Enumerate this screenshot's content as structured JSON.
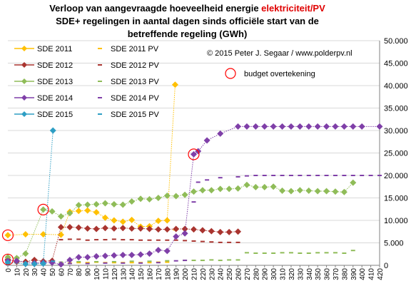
{
  "title": {
    "line1_prefix": "Verloop van aangevraagde hoeveelheid energie ",
    "line1_highlight": "elektriciteit/PV",
    "line2": "SDE+ regelingen in aantal dagen sinds officiële start van de",
    "line3": "betreffende regeling (GWh)"
  },
  "copyright": "© 2015 Peter J. Segaar / www.polderpv.nl",
  "budget_label": "budget overtekening",
  "colors": {
    "sde2011": "#ffc000",
    "sde2012": "#a9342f",
    "sde2013": "#8fbc58",
    "sde2014": "#7f3fa8",
    "sde2015": "#2e9ec4",
    "marker_circle": "#ff0000",
    "grid": "#d9d9d9"
  },
  "chart_data": {
    "type": "line",
    "xlabel": "",
    "ylabel": "",
    "xlim": [
      0,
      420
    ],
    "ylim": [
      0,
      50000
    ],
    "x_ticks": [
      0,
      10,
      20,
      30,
      40,
      50,
      60,
      70,
      80,
      90,
      100,
      110,
      120,
      130,
      140,
      150,
      160,
      170,
      180,
      190,
      200,
      210,
      220,
      230,
      240,
      250,
      260,
      270,
      280,
      290,
      300,
      310,
      320,
      330,
      340,
      350,
      360,
      370,
      380,
      390,
      400,
      410,
      420
    ],
    "y_ticks": [
      "0",
      "5.000",
      "10.000",
      "15.000",
      "20.000",
      "25.000",
      "30.000",
      "35.000",
      "40.000",
      "45.000",
      "50.000"
    ],
    "y_axis_side": "right",
    "grid": true,
    "legend_position": "top-left",
    "series": [
      {
        "name": "SDE 2011",
        "style": "marker-line",
        "color": "#ffc000",
        "points": [
          [
            0,
            6700
          ],
          [
            20,
            6900
          ],
          [
            40,
            6900
          ],
          [
            60,
            6800
          ],
          [
            70,
            11900
          ],
          [
            80,
            12100
          ],
          [
            90,
            12200
          ],
          [
            100,
            11800
          ],
          [
            110,
            10600
          ],
          [
            120,
            10000
          ],
          [
            130,
            9700
          ],
          [
            140,
            10100
          ],
          [
            150,
            8600
          ],
          [
            160,
            8700
          ],
          [
            170,
            9900
          ],
          [
            180,
            10000
          ],
          [
            189,
            40200
          ]
        ]
      },
      {
        "name": "SDE 2011 PV",
        "style": "dash",
        "color": "#ffc000",
        "points": [
          [
            0,
            200
          ],
          [
            20,
            300
          ],
          [
            40,
            200
          ],
          [
            60,
            300
          ],
          [
            70,
            500
          ],
          [
            80,
            600
          ],
          [
            90,
            600
          ],
          [
            100,
            700
          ],
          [
            110,
            600
          ],
          [
            120,
            600
          ],
          [
            130,
            600
          ],
          [
            140,
            600
          ],
          [
            150,
            600
          ],
          [
            160,
            600
          ],
          [
            170,
            700
          ],
          [
            180,
            700
          ],
          [
            189,
            7900
          ]
        ]
      },
      {
        "name": "SDE 2012",
        "style": "marker-line",
        "color": "#a9342f",
        "points": [
          [
            0,
            1300
          ],
          [
            10,
            800
          ],
          [
            20,
            800
          ],
          [
            30,
            1200
          ],
          [
            40,
            900
          ],
          [
            50,
            1000
          ],
          [
            60,
            8500
          ],
          [
            70,
            8500
          ],
          [
            80,
            8400
          ],
          [
            90,
            8200
          ],
          [
            100,
            8100
          ],
          [
            110,
            8300
          ],
          [
            120,
            8200
          ],
          [
            130,
            8300
          ],
          [
            140,
            8200
          ],
          [
            150,
            8200
          ],
          [
            160,
            8100
          ],
          [
            170,
            8000
          ],
          [
            180,
            8000
          ],
          [
            190,
            8100
          ],
          [
            200,
            8100
          ],
          [
            210,
            8000
          ],
          [
            220,
            7800
          ],
          [
            230,
            7600
          ],
          [
            240,
            7400
          ],
          [
            250,
            7400
          ],
          [
            260,
            7500
          ]
        ]
      },
      {
        "name": "SDE 2012 PV",
        "style": "dash",
        "color": "#a9342f",
        "points": [
          [
            0,
            700
          ],
          [
            30,
            800
          ],
          [
            60,
            5700
          ],
          [
            70,
            5800
          ],
          [
            80,
            5800
          ],
          [
            90,
            5600
          ],
          [
            100,
            5700
          ],
          [
            110,
            5700
          ],
          [
            120,
            5800
          ],
          [
            130,
            5700
          ],
          [
            140,
            5700
          ],
          [
            150,
            5600
          ],
          [
            160,
            5600
          ],
          [
            170,
            5600
          ],
          [
            180,
            5600
          ],
          [
            190,
            5600
          ],
          [
            200,
            5500
          ],
          [
            210,
            5400
          ],
          [
            220,
            5300
          ],
          [
            230,
            5200
          ],
          [
            240,
            5100
          ],
          [
            250,
            5100
          ],
          [
            260,
            5100
          ]
        ]
      },
      {
        "name": "SDE 2013",
        "style": "marker-line",
        "color": "#8fbc58",
        "points": [
          [
            0,
            1800
          ],
          [
            10,
            1600
          ],
          [
            20,
            2600
          ],
          [
            40,
            12400
          ],
          [
            50,
            12000
          ],
          [
            60,
            10900
          ],
          [
            70,
            11600
          ],
          [
            80,
            13400
          ],
          [
            90,
            13500
          ],
          [
            100,
            13600
          ],
          [
            110,
            13800
          ],
          [
            120,
            13600
          ],
          [
            130,
            13500
          ],
          [
            140,
            14200
          ],
          [
            150,
            14800
          ],
          [
            160,
            14700
          ],
          [
            170,
            15000
          ],
          [
            180,
            15500
          ],
          [
            190,
            15400
          ],
          [
            200,
            15700
          ],
          [
            210,
            16400
          ],
          [
            220,
            16700
          ],
          [
            230,
            16700
          ],
          [
            240,
            17000
          ],
          [
            250,
            17000
          ],
          [
            260,
            17100
          ],
          [
            270,
            17900
          ],
          [
            280,
            17400
          ],
          [
            290,
            17400
          ],
          [
            300,
            17500
          ],
          [
            310,
            16600
          ],
          [
            320,
            16500
          ],
          [
            330,
            16700
          ],
          [
            340,
            16600
          ],
          [
            350,
            16500
          ],
          [
            360,
            16500
          ],
          [
            370,
            16400
          ],
          [
            380,
            16300
          ],
          [
            390,
            18400
          ]
        ]
      },
      {
        "name": "SDE 2013 PV",
        "style": "dash",
        "color": "#8fbc58",
        "points": [
          [
            0,
            200
          ],
          [
            20,
            400
          ],
          [
            40,
            600
          ],
          [
            60,
            700
          ],
          [
            80,
            800
          ],
          [
            100,
            800
          ],
          [
            120,
            800
          ],
          [
            140,
            900
          ],
          [
            160,
            900
          ],
          [
            180,
            1000
          ],
          [
            200,
            1100
          ],
          [
            210,
            1100
          ],
          [
            220,
            1100
          ],
          [
            230,
            1200
          ],
          [
            240,
            1100
          ],
          [
            250,
            1200
          ],
          [
            260,
            1200
          ],
          [
            270,
            2800
          ],
          [
            280,
            2700
          ],
          [
            290,
            2700
          ],
          [
            300,
            2700
          ],
          [
            310,
            2800
          ],
          [
            320,
            2800
          ],
          [
            330,
            2700
          ],
          [
            340,
            2700
          ],
          [
            350,
            2800
          ],
          [
            360,
            2800
          ],
          [
            370,
            2800
          ],
          [
            380,
            2700
          ],
          [
            390,
            3300
          ]
        ]
      },
      {
        "name": "SDE 2014",
        "style": "marker-line",
        "color": "#7f3fa8",
        "points": [
          [
            0,
            1000
          ],
          [
            10,
            1000
          ],
          [
            30,
            500
          ],
          [
            40,
            600
          ],
          [
            50,
            600
          ],
          [
            60,
            200
          ],
          [
            70,
            1200
          ],
          [
            80,
            1800
          ],
          [
            90,
            1800
          ],
          [
            100,
            2000
          ],
          [
            110,
            2100
          ],
          [
            120,
            2200
          ],
          [
            130,
            2300
          ],
          [
            140,
            2300
          ],
          [
            150,
            2400
          ],
          [
            160,
            2600
          ],
          [
            170,
            3400
          ],
          [
            180,
            3200
          ],
          [
            190,
            6400
          ],
          [
            200,
            7100
          ],
          [
            210,
            24700
          ],
          [
            215,
            25400
          ],
          [
            225,
            27800
          ],
          [
            240,
            29300
          ],
          [
            260,
            30900
          ],
          [
            270,
            30900
          ],
          [
            280,
            30900
          ],
          [
            290,
            30900
          ],
          [
            300,
            30900
          ],
          [
            310,
            30900
          ],
          [
            320,
            30900
          ],
          [
            330,
            30900
          ],
          [
            340,
            30900
          ],
          [
            350,
            30900
          ],
          [
            360,
            30900
          ],
          [
            370,
            30900
          ],
          [
            380,
            30900
          ],
          [
            390,
            30900
          ],
          [
            400,
            30900
          ],
          [
            420,
            30900
          ]
        ]
      },
      {
        "name": "SDE 2014 PV",
        "style": "dash",
        "color": "#7f3fa8",
        "points": [
          [
            0,
            200
          ],
          [
            30,
            200
          ],
          [
            60,
            200
          ],
          [
            70,
            400
          ],
          [
            90,
            400
          ],
          [
            110,
            500
          ],
          [
            130,
            500
          ],
          [
            150,
            500
          ],
          [
            170,
            600
          ],
          [
            190,
            1000
          ],
          [
            200,
            1100
          ],
          [
            210,
            14100
          ],
          [
            215,
            18500
          ],
          [
            225,
            19000
          ],
          [
            240,
            19500
          ],
          [
            260,
            19700
          ],
          [
            270,
            19900
          ],
          [
            280,
            20000
          ],
          [
            290,
            20000
          ],
          [
            300,
            20000
          ],
          [
            310,
            20000
          ],
          [
            320,
            20000
          ],
          [
            330,
            20000
          ],
          [
            340,
            20000
          ],
          [
            350,
            20000
          ],
          [
            360,
            20000
          ],
          [
            370,
            20000
          ],
          [
            380,
            20000
          ],
          [
            390,
            20000
          ],
          [
            400,
            20000
          ],
          [
            410,
            20000
          ],
          [
            420,
            20000
          ]
        ]
      },
      {
        "name": "SDE 2015",
        "style": "marker-line",
        "color": "#2e9ec4",
        "points": [
          [
            0,
            600
          ],
          [
            20,
            300
          ],
          [
            30,
            300
          ],
          [
            40,
            400
          ],
          [
            51,
            30000
          ]
        ]
      },
      {
        "name": "SDE 2015 PV",
        "style": "dash",
        "color": "#2e9ec4",
        "points": [
          [
            0,
            100
          ],
          [
            20,
            100
          ],
          [
            30,
            100
          ],
          [
            40,
            100
          ],
          [
            51,
            900
          ]
        ]
      }
    ],
    "budget_circles": [
      [
        0,
        6700
      ],
      [
        0,
        1300
      ],
      [
        40,
        12400
      ],
      [
        210,
        24700
      ]
    ]
  }
}
